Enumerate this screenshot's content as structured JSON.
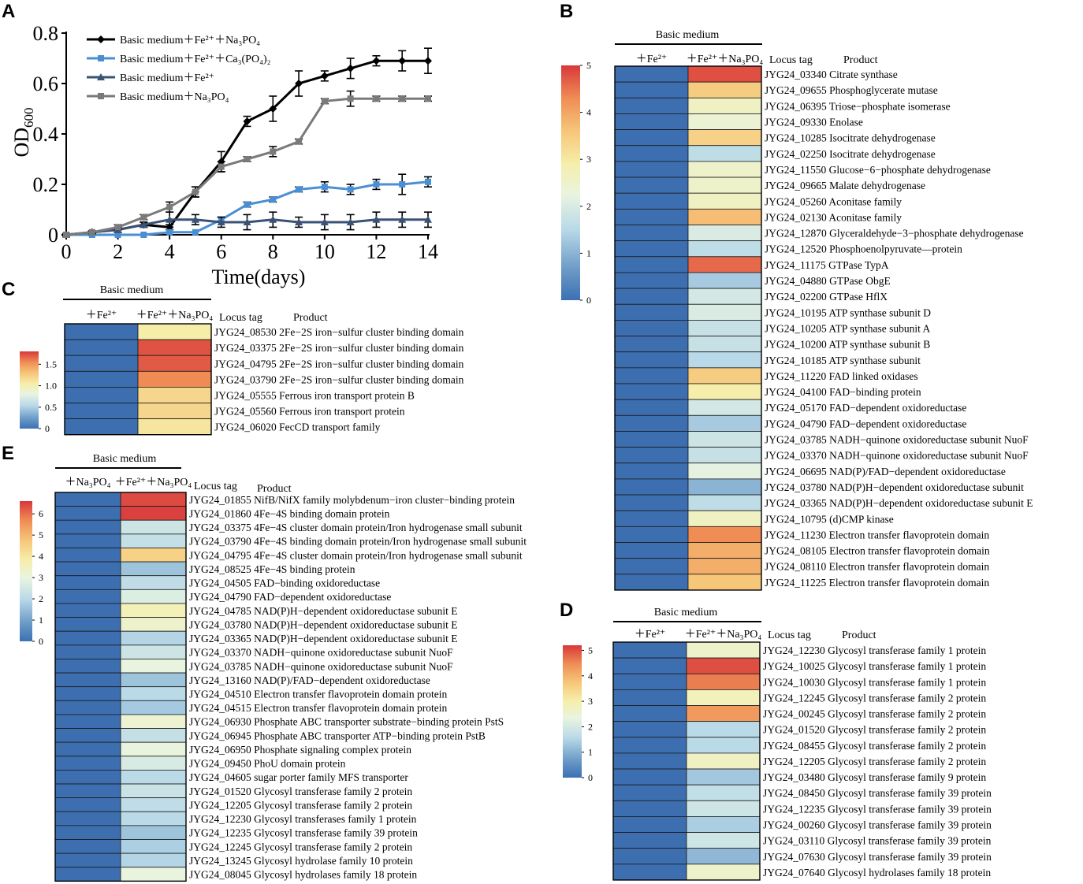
{
  "colors": {
    "low": "#3d6fb0",
    "scale": [
      "#3c70b3",
      "#6f9ec8",
      "#b9d9e8",
      "#e9f4e0",
      "#f6eeaa",
      "#f6c679",
      "#ef8d55",
      "#d8383b"
    ],
    "line_fe_na3po4": "#000000",
    "line_fe_ca3po42": "#4a8fd3",
    "line_fe": "#3a5275",
    "line_na3po4": "#7a7a7a"
  },
  "panels": {
    "A": {
      "letter": "A"
    },
    "B": {
      "letter": "B"
    },
    "C": {
      "letter": "C"
    },
    "D": {
      "letter": "D"
    },
    "E": {
      "letter": "E"
    }
  },
  "chart_data": [
    {
      "id": "A",
      "type": "line",
      "title": "",
      "xlabel": "Time(days)",
      "ylabel": "OD600",
      "ylabel_main": "OD",
      "ylabel_sub": "600",
      "xlim": [
        0,
        14
      ],
      "ylim": [
        0,
        0.8
      ],
      "xticks": [
        0,
        2,
        4,
        6,
        8,
        10,
        12,
        14
      ],
      "yticks": [
        0,
        0.2,
        0.4,
        0.6,
        0.8
      ],
      "xtick_labels": [
        "0",
        "2",
        "4",
        "6",
        "8",
        "10",
        "12",
        "14"
      ],
      "ytick_labels": [
        "0",
        "0.2",
        "0.4",
        "0.6",
        "0.8"
      ],
      "legend_position": "top-left",
      "series": [
        {
          "name": "Basic medium＋Fe²⁺＋Na₃PO₄",
          "color_key": "line_fe_na3po4",
          "marker": "diamond",
          "x": [
            0,
            1,
            2,
            3,
            4,
            5,
            6,
            7,
            8,
            9,
            10,
            11,
            12,
            13,
            14
          ],
          "values": [
            0,
            0.01,
            0.02,
            0.04,
            0.03,
            0.17,
            0.29,
            0.45,
            0.5,
            0.6,
            0.63,
            0.66,
            0.69,
            0.69,
            0.69
          ],
          "errors": [
            0.005,
            0.005,
            0.01,
            0.01,
            0.01,
            0.02,
            0.04,
            0.02,
            0.05,
            0.05,
            0.02,
            0.04,
            0.02,
            0.04,
            0.05
          ]
        },
        {
          "name": "Basic medium＋Fe²⁺＋Ca₃(PO₄)₂",
          "color_key": "line_fe_ca3po42",
          "marker": "square",
          "x": [
            0,
            1,
            2,
            3,
            4,
            5,
            6,
            7,
            8,
            9,
            10,
            11,
            12,
            13,
            14
          ],
          "values": [
            0,
            0,
            0,
            0,
            0.01,
            0.01,
            0.06,
            0.12,
            0.14,
            0.18,
            0.19,
            0.18,
            0.2,
            0.2,
            0.21
          ],
          "errors": [
            0,
            0,
            0,
            0,
            0,
            0,
            0.01,
            0.01,
            0.01,
            0.01,
            0.02,
            0.02,
            0.02,
            0.04,
            0.02
          ]
        },
        {
          "name": "Basic medium＋Fe²⁺",
          "color_key": "line_fe",
          "marker": "triangle",
          "x": [
            0,
            1,
            2,
            3,
            4,
            5,
            6,
            7,
            8,
            9,
            10,
            11,
            12,
            13,
            14
          ],
          "values": [
            0,
            0.01,
            0.02,
            0.04,
            0.06,
            0.06,
            0.05,
            0.05,
            0.06,
            0.05,
            0.05,
            0.05,
            0.06,
            0.06,
            0.06
          ],
          "errors": [
            0,
            0.005,
            0.01,
            0.01,
            0.03,
            0.02,
            0.02,
            0.03,
            0.03,
            0.02,
            0.03,
            0.03,
            0.03,
            0.03,
            0.03
          ]
        },
        {
          "name": "Basic medium＋Na₃PO₄",
          "color_key": "line_na3po4",
          "marker": "square",
          "x": [
            0,
            1,
            2,
            3,
            4,
            5,
            6,
            7,
            8,
            9,
            10,
            11,
            12,
            13,
            14
          ],
          "values": [
            0,
            0.01,
            0.03,
            0.07,
            0.11,
            0.17,
            0.27,
            0.3,
            0.33,
            0.37,
            0.53,
            0.54,
            0.54,
            0.54,
            0.54
          ],
          "errors": [
            0,
            0.005,
            0.01,
            0.01,
            0.02,
            0.02,
            0.02,
            0.01,
            0.02,
            0.01,
            0.01,
            0.03,
            0.01,
            0.01,
            0.01
          ]
        }
      ]
    },
    {
      "id": "B",
      "type": "heatmap",
      "group_label": "Basic medium",
      "columns": [
        "＋Fe²⁺",
        "＋Fe²⁺＋Na₃PO₄"
      ],
      "header_locus": "Locus tag",
      "header_product": "Product",
      "colorbar_max": 5,
      "colorbar_ticks": [
        0,
        1,
        2,
        3,
        4,
        5
      ],
      "rows": [
        {
          "label": "JYG24_03340 Citrate synthase",
          "values": [
            0,
            4.8
          ]
        },
        {
          "label": "JYG24_09655 Phosphoglycerate mutase",
          "values": [
            0,
            3.5
          ]
        },
        {
          "label": "JYG24_06395 Triose−phosphate isomerase",
          "values": [
            0,
            2.6
          ]
        },
        {
          "label": "JYG24_09330 Enolase",
          "values": [
            0,
            2.4
          ]
        },
        {
          "label": "JYG24_10285 Isocitrate dehydrogenase",
          "values": [
            0,
            3.4
          ]
        },
        {
          "label": "JYG24_02250 Isocitrate dehydrogenase",
          "values": [
            0,
            1.6
          ]
        },
        {
          "label": "JYG24_11550 Glucose−6−phosphate dehydrogenase",
          "values": [
            0,
            2.5
          ]
        },
        {
          "label": "JYG24_09665 Malate dehydrogenase",
          "values": [
            0,
            2.5
          ]
        },
        {
          "label": "JYG24_05260 Aconitase family",
          "values": [
            0,
            2.6
          ]
        },
        {
          "label": "JYG24_02130 Aconitase family",
          "values": [
            0,
            3.7
          ]
        },
        {
          "label": "JYG24_12870 Glyceraldehyde−3−phosphate dehydrogenase",
          "values": [
            0,
            2.0
          ]
        },
        {
          "label": "JYG24_12520 Phosphoenolpyruvate—protein",
          "values": [
            0,
            1.6
          ]
        },
        {
          "label": "JYG24_11175 GTPase TypA",
          "values": [
            0,
            4.6
          ]
        },
        {
          "label": "JYG24_04880 GTPase ObgE",
          "values": [
            0,
            1.3
          ]
        },
        {
          "label": "JYG24_02200 GTPase HflX",
          "values": [
            0,
            1.9
          ]
        },
        {
          "label": "JYG24_10195 ATP synthase subunit D",
          "values": [
            0,
            2.0
          ]
        },
        {
          "label": "JYG24_10205 ATP synthase subunit A",
          "values": [
            0,
            1.7
          ]
        },
        {
          "label": "JYG24_10200 ATP synthase subunit B",
          "values": [
            0,
            1.7
          ]
        },
        {
          "label": "JYG24_10185 ATP synthase subunit",
          "values": [
            0,
            1.5
          ]
        },
        {
          "label": "JYG24_11220 FAD linked oxidases",
          "values": [
            0,
            3.5
          ]
        },
        {
          "label": "JYG24_04100 FAD−binding protein",
          "values": [
            0,
            2.9
          ]
        },
        {
          "label": "JYG24_05170 FAD−dependent oxidoreductase",
          "values": [
            0,
            1.9
          ]
        },
        {
          "label": "JYG24_04790 FAD−dependent oxidoreductase",
          "values": [
            0,
            1.3
          ]
        },
        {
          "label": "JYG24_03785 NADH−quinone oxidoreductase subunit NuoF",
          "values": [
            0,
            1.8
          ]
        },
        {
          "label": "JYG24_03370 NADH−quinone oxidoreductase subunit NuoF",
          "values": [
            0,
            1.7
          ]
        },
        {
          "label": "JYG24_06695 NAD(P)/FAD−dependent oxidoreductase",
          "values": [
            0,
            2.2
          ]
        },
        {
          "label": "JYG24_03780 NAD(P)H−dependent oxidoreductase subunit",
          "values": [
            0,
            1.0
          ]
        },
        {
          "label": "JYG24_03365 NAD(P)H−dependent oxidoreductase subunit E",
          "values": [
            0,
            1.6
          ]
        },
        {
          "label": "JYG24_10795 (d)CMP kinase",
          "values": [
            0,
            2.6
          ]
        },
        {
          "label": "JYG24_11230 Electron transfer flavoprotein domain",
          "values": [
            0,
            4.3
          ]
        },
        {
          "label": "JYG24_08105 Electron transfer flavoprotein domain",
          "values": [
            0,
            3.9
          ]
        },
        {
          "label": "JYG24_08110 Electron transfer flavoprotein domain",
          "values": [
            0,
            3.9
          ]
        },
        {
          "label": "JYG24_11225 Electron transfer flavoprotein domain",
          "values": [
            0,
            3.6
          ]
        }
      ]
    },
    {
      "id": "C",
      "type": "heatmap",
      "group_label": "Basic medium",
      "columns": [
        "＋Fe²⁺",
        "＋Fe²⁺＋Na₃PO₄"
      ],
      "header_locus": "Locus tag",
      "header_product": "Product",
      "colorbar_max": 1.8,
      "colorbar_ticks": [
        0,
        0.5,
        1.0,
        1.5
      ],
      "colorbar_tick_labels": [
        "0",
        "0.5",
        "1.0",
        "1.5"
      ],
      "rows": [
        {
          "label": "JYG24_08530 2Fe−2S iron−sulfur cluster binding domain",
          "values": [
            0,
            1.05
          ]
        },
        {
          "label": "JYG24_03375 2Fe−2S iron−sulfur cluster binding domain",
          "values": [
            0,
            1.72
          ]
        },
        {
          "label": "JYG24_04795 2Fe−2S iron−sulfur cluster binding domain",
          "values": [
            0,
            1.7
          ]
        },
        {
          "label": "JYG24_03790 2Fe−2S iron−sulfur cluster binding domain",
          "values": [
            0,
            1.55
          ]
        },
        {
          "label": "JYG24_05555 Ferrous iron transport protein B",
          "values": [
            0,
            1.2
          ]
        },
        {
          "label": "JYG24_05560 Ferrous iron transport protein",
          "values": [
            0,
            1.2
          ]
        },
        {
          "label": "JYG24_06020 FecCD transport family",
          "values": [
            0,
            1.1
          ]
        }
      ]
    },
    {
      "id": "D",
      "type": "heatmap",
      "group_label": "Basic medium",
      "columns": [
        "＋Fe²⁺",
        "＋Fe²⁺＋Na₃PO₄"
      ],
      "header_locus": "Locus tag",
      "header_product": "Product",
      "colorbar_max": 5.2,
      "colorbar_ticks": [
        0,
        1,
        2,
        3,
        4,
        5
      ],
      "rows": [
        {
          "label": "JYG24_12230 Glycosyl transferase family 1 protein",
          "values": [
            0,
            2.6
          ]
        },
        {
          "label": "JYG24_10025 Glycosyl transferase family 1 protein",
          "values": [
            0,
            5.0
          ]
        },
        {
          "label": "JYG24_10030 Glycosyl transferase family 1 protein",
          "values": [
            0,
            4.6
          ]
        },
        {
          "label": "JYG24_12245 Glycosyl transferase family 2 protein",
          "values": [
            0,
            2.8
          ]
        },
        {
          "label": "JYG24_00245 Glycosyl transferase family 2 protein",
          "values": [
            0,
            4.3
          ]
        },
        {
          "label": "JYG24_01520 Glycosyl transferase family 2 protein",
          "values": [
            0,
            1.6
          ]
        },
        {
          "label": "JYG24_08455 Glycosyl transferase family 2 protein",
          "values": [
            0,
            1.6
          ]
        },
        {
          "label": "JYG24_12205 Glycosyl transferase family 2 protein",
          "values": [
            0,
            2.7
          ]
        },
        {
          "label": "JYG24_03480 Glycosyl transferase family 9 protein",
          "values": [
            0,
            1.3
          ]
        },
        {
          "label": "JYG24_08450 Glycosyl transferase family 39 protein",
          "values": [
            0,
            1.7
          ]
        },
        {
          "label": "JYG24_12235 Glycosyl transferase family 39 protein",
          "values": [
            0,
            1.9
          ]
        },
        {
          "label": "JYG24_00260 Glycosyl transferase family 39 protein",
          "values": [
            0,
            1.4
          ]
        },
        {
          "label": "JYG24_03110 Glycosyl transferase family 39 protein",
          "values": [
            0,
            1.9
          ]
        },
        {
          "label": "JYG24_07630 Glycosyl transferase family 39 protein",
          "values": [
            0,
            1.1
          ]
        },
        {
          "label": "JYG24_07640 Glycosyl hydrolases family 18 protein",
          "values": [
            0,
            2.6
          ]
        }
      ]
    },
    {
      "id": "E",
      "type": "heatmap",
      "group_label": "Basic medium",
      "columns": [
        "＋Na₃PO₄",
        "＋Fe²⁺＋Na₃PO₄"
      ],
      "header_locus": "Locus tag",
      "header_product": "Product",
      "colorbar_max": 6.6,
      "colorbar_ticks": [
        0,
        1,
        2,
        3,
        4,
        5,
        6
      ],
      "rows": [
        {
          "label": "JYG24_01855 NifB/NifX family molybdenum−iron cluster−binding protein",
          "values": [
            0,
            6.4
          ]
        },
        {
          "label": "JYG24_01860 4Fe−4S binding domain protein",
          "values": [
            0,
            6.5
          ]
        },
        {
          "label": "JYG24_03375 4Fe−4S cluster domain protein/Iron hydrogenase small subunit",
          "values": [
            0,
            2.4
          ]
        },
        {
          "label": "JYG24_03790 4Fe−4S binding domain protein/Iron hydrogenase small subunit",
          "values": [
            0,
            2.2
          ]
        },
        {
          "label": "JYG24_04795 4Fe−4S cluster domain protein/Iron hydrogenase small subunit",
          "values": [
            0,
            4.5
          ]
        },
        {
          "label": "JYG24_08525 4Fe−4S binding protein",
          "values": [
            0,
            1.6
          ]
        },
        {
          "label": "JYG24_04505 FAD−binding oxidoreductase",
          "values": [
            0,
            2.1
          ]
        },
        {
          "label": "JYG24_04790 FAD−dependent oxidoreductase",
          "values": [
            0,
            2.7
          ]
        },
        {
          "label": "JYG24_04785 NAD(P)H−dependent oxidoreductase subunit E",
          "values": [
            0,
            3.6
          ]
        },
        {
          "label": "JYG24_03780 NAD(P)H−dependent oxidoreductase subunit E",
          "values": [
            0,
            3.3
          ]
        },
        {
          "label": "JYG24_03365 NAD(P)H−dependent oxidoreductase subunit E",
          "values": [
            0,
            1.9
          ]
        },
        {
          "label": "JYG24_03370 NADH−quinone oxidoreductase subunit NuoF",
          "values": [
            0,
            2.4
          ]
        },
        {
          "label": "JYG24_03785 NADH−quinone oxidoreductase subunit NuoF",
          "values": [
            0,
            3.0
          ]
        },
        {
          "label": "JYG24_13160 NAD(P)/FAD−dependent oxidoreductase",
          "values": [
            0,
            1.6
          ]
        },
        {
          "label": "JYG24_04510 Electron transfer flavoprotein domain protein",
          "values": [
            0,
            2.0
          ]
        },
        {
          "label": "JYG24_04515 Electron transfer flavoprotein domain protein",
          "values": [
            0,
            1.7
          ]
        },
        {
          "label": "JYG24_06930 Phosphate ABC transporter substrate−binding protein PstS",
          "values": [
            0,
            3.2
          ]
        },
        {
          "label": "JYG24_06945 Phosphate ABC transporter ATP−binding protein PstB",
          "values": [
            0,
            2.2
          ]
        },
        {
          "label": "JYG24_06950 Phosphate signaling complex protein",
          "values": [
            0,
            3.0
          ]
        },
        {
          "label": "JYG24_09450 PhoU domain protein",
          "values": [
            0,
            2.6
          ]
        },
        {
          "label": "JYG24_04605 sugar porter family MFS transporter",
          "values": [
            0,
            2.0
          ]
        },
        {
          "label": "JYG24_01520 Glycosyl transferase family 2 protein",
          "values": [
            0,
            2.3
          ]
        },
        {
          "label": "JYG24_12205 Glycosyl transferase family 2 protein",
          "values": [
            0,
            2.1
          ]
        },
        {
          "label": "JYG24_12230 Glycosyl transferases family 1 protein",
          "values": [
            0,
            2.0
          ]
        },
        {
          "label": "JYG24_12235 Glycosyl transferase family 39 protein",
          "values": [
            0,
            1.6
          ]
        },
        {
          "label": "JYG24_12245 Glycosyl transferase family 2 protein",
          "values": [
            0,
            1.8
          ]
        },
        {
          "label": "JYG24_13245 Glycosyl hydrolase family 10 protein",
          "values": [
            0,
            1.9
          ]
        },
        {
          "label": "JYG24_08045 Glycosyl hydrolases family 18 protein",
          "values": [
            0,
            3.0
          ]
        }
      ]
    }
  ]
}
